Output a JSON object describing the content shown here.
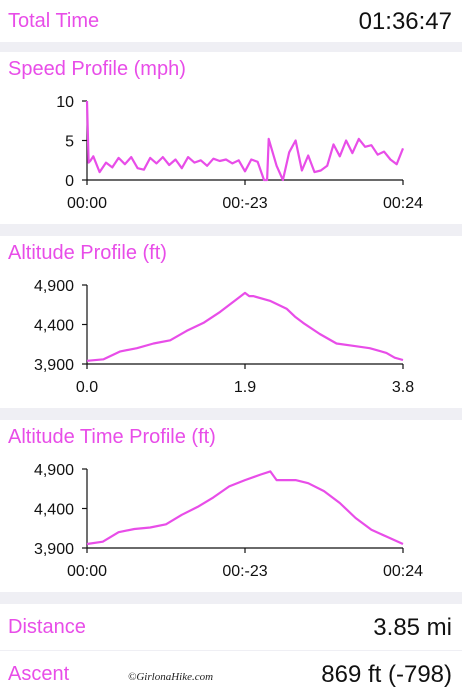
{
  "summary_top": {
    "total_time_label": "Total Time",
    "total_time_value": "01:36:47"
  },
  "summary_bottom": {
    "distance_label": "Distance",
    "distance_value": "3.85 mi",
    "ascent_label": "Ascent",
    "ascent_value": "869 ft (-798)"
  },
  "watermark": "©GirlonaHike.com",
  "colors": {
    "accent": "#e84de8",
    "background": "#efeff4",
    "panel": "#ffffff"
  },
  "chart_data": [
    {
      "type": "line",
      "title": "Speed Profile (mph)",
      "ylim": [
        0,
        10
      ],
      "y_ticks": [
        "10",
        "5",
        "0"
      ],
      "x_ticks": [
        "00:00",
        "00:-23",
        "00:24"
      ],
      "xlim": [
        0,
        1
      ],
      "series": [
        {
          "x": [
            0,
            0.005,
            0.01,
            0.02,
            0.04,
            0.06,
            0.08,
            0.1,
            0.12,
            0.14,
            0.16,
            0.18,
            0.2,
            0.22,
            0.24,
            0.26,
            0.28,
            0.3,
            0.32,
            0.34,
            0.36,
            0.38,
            0.4,
            0.42,
            0.44,
            0.46,
            0.48,
            0.5,
            0.52,
            0.54,
            0.56,
            0.57,
            0.575,
            0.6,
            0.62,
            0.64,
            0.66,
            0.68,
            0.7,
            0.72,
            0.74,
            0.76,
            0.78,
            0.8,
            0.82,
            0.84,
            0.86,
            0.88,
            0.9,
            0.92,
            0.94,
            0.96,
            0.98,
            1.0
          ],
          "y": [
            10,
            2.2,
            2.4,
            3,
            1,
            2.2,
            1.6,
            2.8,
            2,
            2.9,
            1.5,
            1.3,
            2.8,
            2.1,
            2.9,
            1.9,
            2.6,
            1.5,
            2.9,
            2.2,
            2.5,
            1.8,
            2.7,
            2.4,
            2.6,
            2.1,
            2.5,
            1.1,
            2.6,
            2.3,
            0,
            0,
            5.2,
            1.8,
            0,
            3.5,
            5,
            1.2,
            3.1,
            1,
            1.2,
            1.8,
            4.5,
            3,
            5,
            3.4,
            5.2,
            4.2,
            4.4,
            3.2,
            3.6,
            2.6,
            2,
            4
          ]
        }
      ]
    },
    {
      "type": "line",
      "title": "Altitude Profile (ft)",
      "ylim": [
        3900,
        4900
      ],
      "y_ticks": [
        "4,900",
        "4,400",
        "3,900"
      ],
      "x_ticks": [
        "0.0",
        "1.9",
        "3.8"
      ],
      "xlim": [
        0,
        3.8
      ],
      "series": [
        {
          "x": [
            0,
            0.2,
            0.4,
            0.6,
            0.8,
            1.0,
            1.2,
            1.4,
            1.6,
            1.8,
            1.85,
            1.9,
            1.95,
            2.0,
            2.2,
            2.4,
            2.5,
            2.6,
            2.8,
            3.0,
            3.2,
            3.4,
            3.6,
            3.7,
            3.8
          ],
          "y": [
            3940,
            3960,
            4060,
            4100,
            4160,
            4200,
            4320,
            4420,
            4560,
            4720,
            4760,
            4800,
            4760,
            4760,
            4700,
            4600,
            4500,
            4420,
            4280,
            4160,
            4130,
            4100,
            4040,
            3980,
            3950
          ]
        }
      ]
    },
    {
      "type": "line",
      "title": "Altitude Time Profile (ft)",
      "ylim": [
        3900,
        4900
      ],
      "y_ticks": [
        "4,900",
        "4,400",
        "3,900"
      ],
      "x_ticks": [
        "00:00",
        "00:-23",
        "00:24"
      ],
      "xlim": [
        0,
        1
      ],
      "series": [
        {
          "x": [
            0,
            0.05,
            0.1,
            0.15,
            0.2,
            0.25,
            0.3,
            0.35,
            0.4,
            0.45,
            0.5,
            0.55,
            0.58,
            0.6,
            0.62,
            0.66,
            0.7,
            0.75,
            0.8,
            0.85,
            0.9,
            0.95,
            1.0
          ],
          "y": [
            3950,
            3980,
            4100,
            4140,
            4160,
            4200,
            4320,
            4420,
            4540,
            4680,
            4760,
            4830,
            4870,
            4760,
            4760,
            4760,
            4720,
            4620,
            4470,
            4280,
            4130,
            4040,
            3950
          ]
        }
      ]
    }
  ]
}
